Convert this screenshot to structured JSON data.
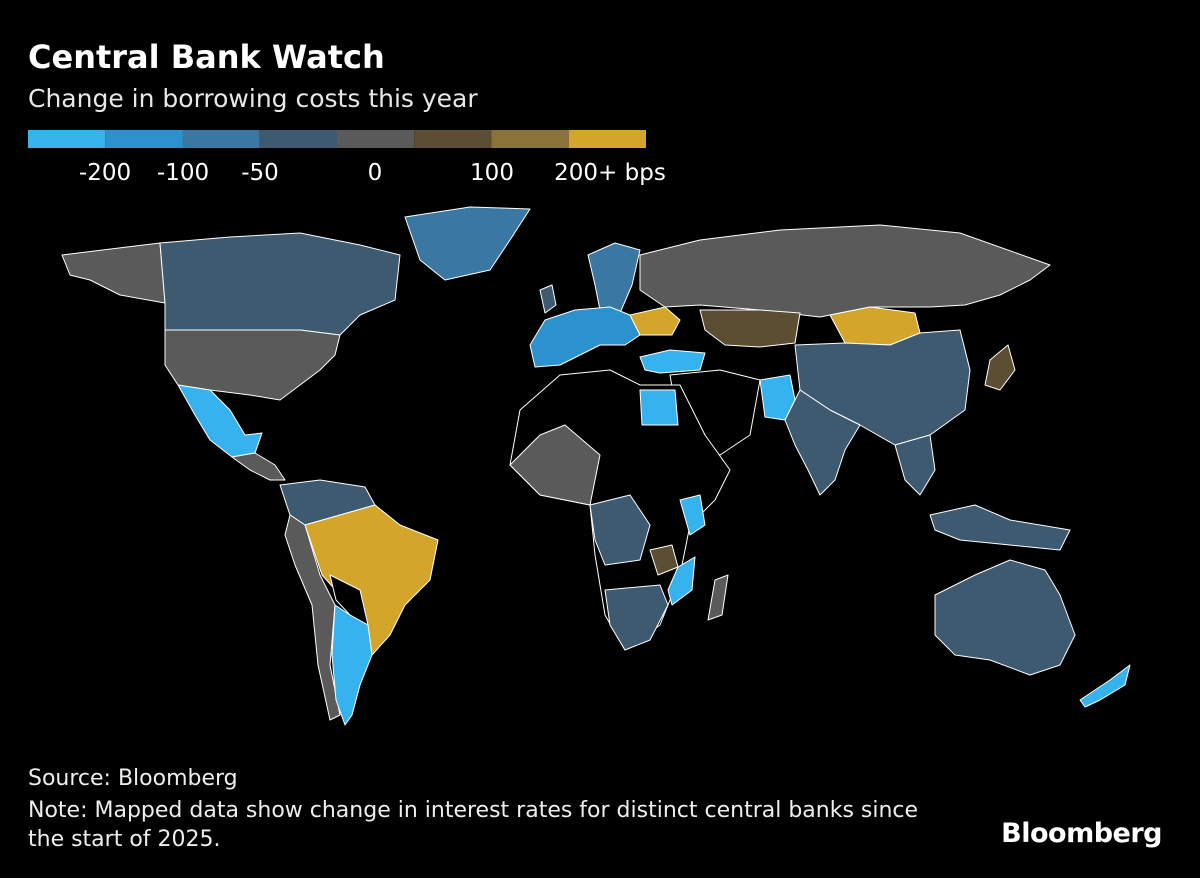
{
  "header": {
    "title": "Central Bank Watch",
    "subtitle": "Change in borrowing costs this year"
  },
  "legend": {
    "colors": [
      "#36b3ee",
      "#2b92cf",
      "#3a77a3",
      "#3d5a70",
      "#5a5a5a",
      "#5b4e33",
      "#8a7339",
      "#d3a62b"
    ],
    "labels": [
      "-200",
      "-100",
      "-50",
      "0",
      "100",
      "200+ bps"
    ]
  },
  "footer": {
    "source": "Source: Bloomberg",
    "note": "Note: Mapped data show change in interest rates for distinct central banks since the start of 2025.",
    "brand": "Bloomberg"
  }
}
